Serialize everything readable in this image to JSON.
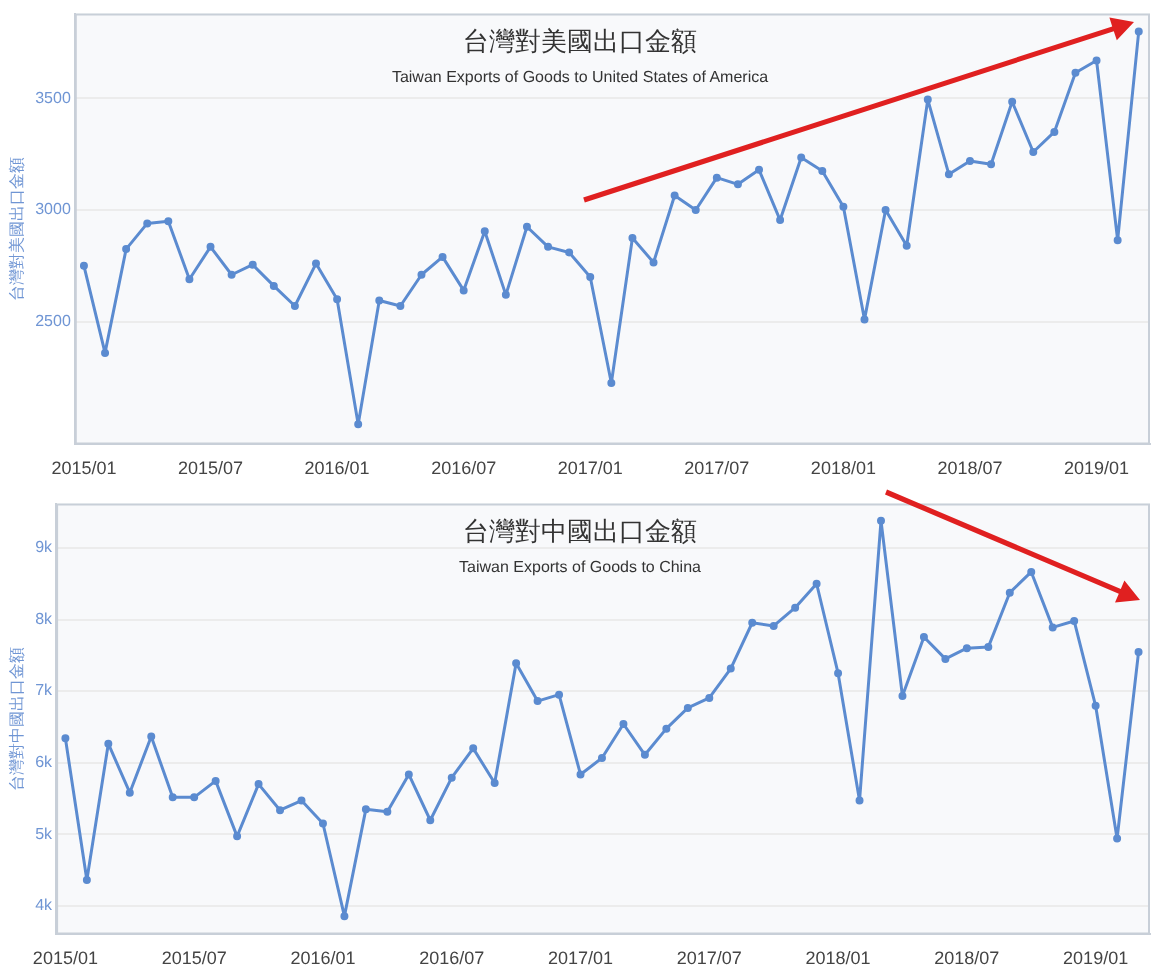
{
  "chart_data": [
    {
      "type": "line",
      "title": "台灣對美國出口金額",
      "subtitle": "Taiwan Exports of Goods to United States of America",
      "ylabel": "台灣對美國出口金額",
      "x": [
        "2015-01",
        "2015-02",
        "2015-03",
        "2015-04",
        "2015-05",
        "2015-06",
        "2015-07",
        "2015-08",
        "2015-09",
        "2015-10",
        "2015-11",
        "2015-12",
        "2016-01",
        "2016-02",
        "2016-03",
        "2016-04",
        "2016-05",
        "2016-06",
        "2016-07",
        "2016-08",
        "2016-09",
        "2016-10",
        "2016-11",
        "2016-12",
        "2017-01",
        "2017-02",
        "2017-03",
        "2017-04",
        "2017-05",
        "2017-06",
        "2017-07",
        "2017-08",
        "2017-09",
        "2017-10",
        "2017-11",
        "2017-12",
        "2018-01",
        "2018-02",
        "2018-03",
        "2018-04",
        "2018-05",
        "2018-06",
        "2018-07",
        "2018-08",
        "2018-09",
        "2018-10",
        "2018-11",
        "2018-12",
        "2019-01",
        "2019-02",
        "2019-03"
      ],
      "series": [
        {
          "color": "#5b8bd0",
          "values": [
            2750,
            2360,
            2825,
            2940,
            2950,
            2690,
            2835,
            2710,
            2755,
            2660,
            2570,
            2760,
            2600,
            2040,
            2595,
            2570,
            2710,
            2790,
            2640,
            2905,
            2620,
            2925,
            2835,
            2810,
            2700,
            2225,
            2875,
            2765,
            3065,
            3000,
            3145,
            3115,
            3180,
            2955,
            3235,
            3175,
            3015,
            2510,
            3000,
            2840,
            3495,
            3160,
            3220,
            3205,
            3485,
            3260,
            3350,
            3615,
            3670,
            2865,
            3800
          ]
        }
      ],
      "xlim": [
        "2014-12-18",
        "2019-03-17"
      ],
      "ylim": [
        1950,
        3880
      ],
      "xticks": [
        {
          "value": "2015-01",
          "label": "2015/01"
        },
        {
          "value": "2015-07",
          "label": "2015/07"
        },
        {
          "value": "2016-01",
          "label": "2016/01"
        },
        {
          "value": "2016-07",
          "label": "2016/07"
        },
        {
          "value": "2017-01",
          "label": "2017/01"
        },
        {
          "value": "2017-07",
          "label": "2017/07"
        },
        {
          "value": "2018-01",
          "label": "2018/01"
        },
        {
          "value": "2018-07",
          "label": "2018/07"
        },
        {
          "value": "2019-01",
          "label": "2019/01"
        }
      ],
      "yticks": [
        2500,
        3000,
        3500
      ],
      "grid": "y",
      "marker": "circle",
      "legend": false
    },
    {
      "type": "line",
      "title": "台灣對中國出口金額",
      "subtitle": "Taiwan Exports of Goods to China",
      "ylabel": "台灣對中國出口金額",
      "x": [
        "2015-01",
        "2015-02",
        "2015-03",
        "2015-04",
        "2015-05",
        "2015-06",
        "2015-07",
        "2015-08",
        "2015-09",
        "2015-10",
        "2015-11",
        "2015-12",
        "2016-01",
        "2016-02",
        "2016-03",
        "2016-04",
        "2016-05",
        "2016-06",
        "2016-07",
        "2016-08",
        "2016-09",
        "2016-10",
        "2016-11",
        "2016-12",
        "2017-01",
        "2017-02",
        "2017-03",
        "2017-04",
        "2017-05",
        "2017-06",
        "2017-07",
        "2017-08",
        "2017-09",
        "2017-10",
        "2017-11",
        "2017-12",
        "2018-01",
        "2018-02",
        "2018-03",
        "2018-04",
        "2018-05",
        "2018-06",
        "2018-07",
        "2018-08",
        "2018-09",
        "2018-10",
        "2018-11",
        "2018-12",
        "2019-01",
        "2019-02",
        "2019-03"
      ],
      "series": [
        {
          "color": "#5b8bd0",
          "values": [
            6340,
            4360,
            6265,
            5580,
            6365,
            5515,
            5515,
            5745,
            4970,
            5700,
            5335,
            5470,
            5150,
            3855,
            5350,
            5315,
            5835,
            5195,
            5790,
            6200,
            5715,
            7390,
            6860,
            6950,
            5835,
            6065,
            6540,
            6110,
            6475,
            6765,
            6905,
            7315,
            7955,
            7910,
            8165,
            8500,
            7250,
            5470,
            9380,
            6930,
            7755,
            7450,
            7600,
            7615,
            8375,
            8665,
            7890,
            7980,
            6795,
            4940,
            7545
          ]
        }
      ],
      "xlim": [
        "2014-12-18",
        "2019-03-17"
      ],
      "ylim": [
        3600,
        9620
      ],
      "xticks": [
        {
          "value": "2015-01",
          "label": "2015/01"
        },
        {
          "value": "2015-07",
          "label": "2015/07"
        },
        {
          "value": "2016-01",
          "label": "2016/01"
        },
        {
          "value": "2016-07",
          "label": "2016/07"
        },
        {
          "value": "2017-01",
          "label": "2017/01"
        },
        {
          "value": "2017-07",
          "label": "2017/07"
        },
        {
          "value": "2018-01",
          "label": "2018/01"
        },
        {
          "value": "2018-07",
          "label": "2018/07"
        },
        {
          "value": "2019-01",
          "label": "2019/01"
        }
      ],
      "yticks": [
        {
          "value": 4000,
          "label": "4k"
        },
        {
          "value": 5000,
          "label": "5k"
        },
        {
          "value": 6000,
          "label": "6k"
        },
        {
          "value": 7000,
          "label": "7k"
        },
        {
          "value": 8000,
          "label": "8k"
        },
        {
          "value": 9000,
          "label": "9k"
        }
      ],
      "grid": "y",
      "marker": "circle",
      "legend": false
    }
  ]
}
